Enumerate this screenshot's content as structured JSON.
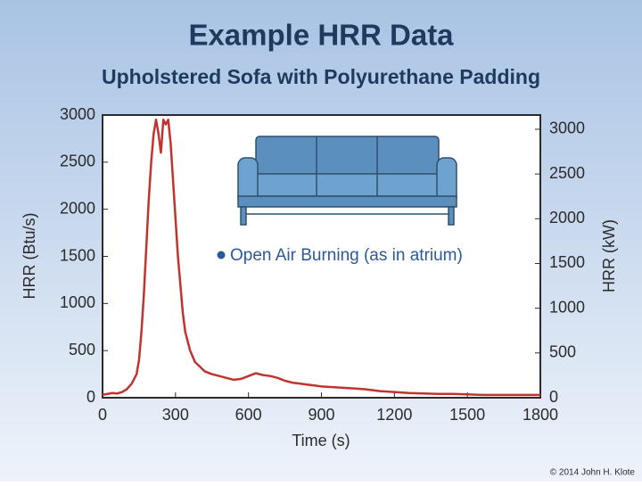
{
  "chart_data": {
    "type": "line",
    "title": "Example HRR Data",
    "subtitle": "Upholstered Sofa with Polyurethane Padding",
    "xlabel": "Time (s)",
    "ylabel": "HRR (Btu/s)",
    "y2label": "HRR (kW)",
    "annotation": "Open Air Burning (as in atrium)",
    "credit": "© 2014 John H. Klote",
    "x": [
      0,
      20,
      40,
      60,
      80,
      100,
      120,
      140,
      150,
      160,
      170,
      180,
      190,
      200,
      210,
      220,
      230,
      240,
      250,
      260,
      270,
      280,
      290,
      300,
      310,
      320,
      330,
      340,
      360,
      380,
      400,
      420,
      450,
      480,
      510,
      540,
      570,
      600,
      630,
      660,
      690,
      720,
      750,
      780,
      810,
      840,
      870,
      900,
      960,
      1020,
      1080,
      1140,
      1200,
      1260,
      1320,
      1380,
      1440,
      1500,
      1560,
      1620,
      1680,
      1740,
      1800
    ],
    "series": [
      {
        "name": "HRR",
        "color": "#c0332f",
        "values": [
          30,
          40,
          50,
          45,
          60,
          90,
          150,
          250,
          400,
          700,
          1100,
          1600,
          2100,
          2500,
          2800,
          2950,
          2800,
          2600,
          2950,
          2900,
          2950,
          2700,
          2300,
          1900,
          1500,
          1200,
          900,
          700,
          500,
          380,
          330,
          280,
          250,
          230,
          210,
          190,
          200,
          230,
          260,
          240,
          230,
          210,
          180,
          160,
          150,
          140,
          130,
          120,
          110,
          100,
          90,
          70,
          60,
          50,
          45,
          40,
          40,
          35,
          30,
          30,
          30,
          30,
          30
        ]
      }
    ],
    "xlim": [
      0,
      1800
    ],
    "xticks": [
      0,
      300,
      600,
      900,
      1200,
      1500,
      1800
    ],
    "ylim": [
      0,
      3000
    ],
    "yticks": [
      0,
      500,
      1000,
      1500,
      2000,
      2500,
      3000
    ],
    "y2lim": [
      0,
      3159
    ],
    "y2ticks": [
      0,
      500,
      1000,
      1500,
      2000,
      2500,
      3000
    ]
  }
}
